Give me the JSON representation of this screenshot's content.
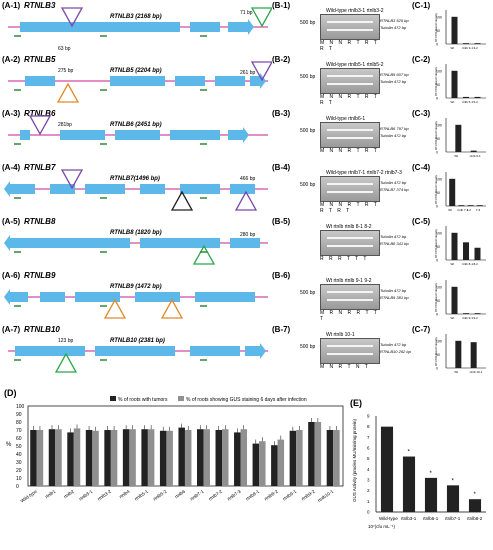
{
  "rows": [
    {
      "label": "(A-1)",
      "gene": "RTNLB3",
      "title": "RTNLB3 (2168 bp)",
      "leftbp": "63 bp",
      "rightbp": "71 bp",
      "blabel": "(B-1)",
      "clabel": "(C-1)",
      "gel_title": "Wild-type rtnlb3-1 rtnlb3-2",
      "primers": [
        "RTNLB3 525 bp",
        "Tubulin 472 bp"
      ],
      "marker": "500 bp",
      "lanes": "M N N R T R T R T",
      "bars": [
        100,
        3,
        3
      ],
      "bar_labels": [
        "Wt",
        "rtnlb 3-1",
        "3-2"
      ]
    },
    {
      "label": "(A-2)",
      "gene": "RTNLB5",
      "title": "RTNLB5 (2204 bp)",
      "leftbp": "275 bp",
      "rightbp": "261 bp",
      "blabel": "(B-2)",
      "clabel": "(C-2)",
      "gel_title": "Wild-type rtnlb5-1 rtnlb5-2",
      "primers": [
        "RTNLB5 607 bp",
        "Tubulin 472 bp"
      ],
      "marker": "500 bp",
      "lanes": "M N N R T R T R T",
      "bars": [
        100,
        4,
        4
      ],
      "bar_labels": [
        "Wt",
        "rtnlb 5-1",
        "5-2"
      ]
    },
    {
      "label": "(A-3)",
      "gene": "RTNLB6",
      "title": "RTNLB6 (2451 bp)",
      "leftbp": "281bp",
      "rightbp": "",
      "blabel": "(B-3)",
      "clabel": "(C-3)",
      "gel_title": "Wild-type rtnlb6-1",
      "primers": [
        "RTNLB6 797 bp",
        "Tubulin 472 bp"
      ],
      "marker": "500 bp",
      "lanes": "M N N R T R T",
      "bars": [
        100,
        5
      ],
      "bar_labels": [
        "Wt",
        "rtnlb 6-1"
      ]
    },
    {
      "label": "(A-4)",
      "gene": "RTNLB7",
      "title": "RTNLB7(1496 bp)",
      "leftbp": "",
      "rightbp": "466 bp",
      "blabel": "(B-4)",
      "clabel": "(C-4)",
      "gel_title": "Wild-type rtnlb7-1 rtnlb7-2 rtnlb7-3",
      "primers": [
        "Tubulin 472 bp",
        "RTNLB7 374 bp"
      ],
      "marker": "500 bp",
      "lanes": "M N N R T R T R T R T",
      "bars": [
        100,
        3,
        3,
        3
      ],
      "bar_labels": [
        "Wt",
        "rtnlb 7-1",
        "7-2",
        "7-3"
      ]
    },
    {
      "label": "(A-5)",
      "gene": "RTNLB8",
      "title": "RTNLB8 (1820 bp)",
      "leftbp": "",
      "rightbp": "280 bp",
      "blabel": "(B-5)",
      "clabel": "(C-5)",
      "gel_title": "Wt rtnlb rtnlb 8-1 8-2",
      "primers": [
        "Tubulin 472 bp",
        "RTNLB8 341 bp"
      ],
      "marker": "",
      "lanes": "R R R T T T",
      "bars": [
        100,
        65,
        45
      ],
      "bar_labels": [
        "Wt",
        "rtnlb 8-1",
        "8-2"
      ]
    },
    {
      "label": "(A-6)",
      "gene": "RTNLB9",
      "title": "RTNLB9 (1472 bp)",
      "leftbp": "",
      "rightbp": "",
      "blabel": "(B-6)",
      "clabel": "(C-6)",
      "gel_title": "Wt rtnlb rtnlb 9-1 9-2",
      "primers": [
        "Tubulin 472 bp",
        "RTNLB9 381 bp"
      ],
      "marker": "500 bp",
      "lanes": "M R N R R T T T",
      "bars": [
        100,
        3,
        3
      ],
      "bar_labels": [
        "Wt",
        "rtnlb 9-1",
        "9-2"
      ]
    },
    {
      "label": "(A-7)",
      "gene": "RTNLB10",
      "title": "RTNLB10 (2381 bp)",
      "leftbp": "123 bp",
      "rightbp": "",
      "blabel": "(B-7)",
      "clabel": "(C-7)",
      "gel_title": "Wt rtnlb 10-1",
      "primers": [
        "Tubulin 472 bp",
        "RTNLB10 262 bp"
      ],
      "marker": "500 bp",
      "lanes": "M N R T N T",
      "bars": [
        100,
        95
      ],
      "bar_labels": [
        "Wt",
        "rtnlb 10-1"
      ]
    }
  ],
  "panelD": {
    "label": "(D)",
    "legend": [
      "% of roots with tumors",
      "% of roots showing GUS staining 6 days after infection"
    ],
    "ylabel": "%",
    "ylim": [
      0,
      100
    ],
    "categories": [
      "Wild-type",
      "rtnlb1",
      "rtnlb2",
      "rtnlb3-1",
      "rtnlb3-2",
      "rtnlb4",
      "rtnlb5-1",
      "rtnlb5-2",
      "rtnlb6",
      "rtnlb7-1",
      "rtnlb7-2",
      "rtnlb7-3",
      "rtnlb8-1",
      "rtnlb8-2",
      "rtnlb9-1",
      "rtnlb9-2",
      "rtnlb10-1"
    ],
    "series": [
      {
        "name": "% of roots with tumors",
        "values": [
          70,
          71,
          67,
          70,
          70,
          71,
          71,
          69,
          73,
          71,
          70,
          67,
          53,
          51,
          69,
          80,
          70
        ]
      },
      {
        "name": "% of roots showing GUS staining 6 days after infection",
        "values": [
          70,
          71,
          72,
          69,
          70,
          71,
          71,
          69,
          70,
          71,
          71,
          71,
          56,
          58,
          70,
          80,
          70
        ]
      }
    ]
  },
  "panelE": {
    "label": "(E)",
    "ylabel": "GUS Activity (pmoles MU/min/mg protein)",
    "xlabel": "10⁷(cfu mL⁻¹)",
    "categories": [
      "Wild-type",
      "rtnlb3-1",
      "rtnlb5-1",
      "rtnlb7-1",
      "rtnlb8-2"
    ],
    "values": [
      8,
      5.2,
      3.2,
      2.5,
      1.2
    ],
    "ylim": [
      0,
      9
    ]
  },
  "colors": {
    "exon": "#5bb8e8",
    "line": "#d04aa8",
    "trianglePurple": "#7a4aa8",
    "triangleOrange": "#e08a2a",
    "triangleGreen": "#2aa84a",
    "triangleBlack": "#222222",
    "barBlack": "#222222",
    "barGray": "#909090"
  }
}
